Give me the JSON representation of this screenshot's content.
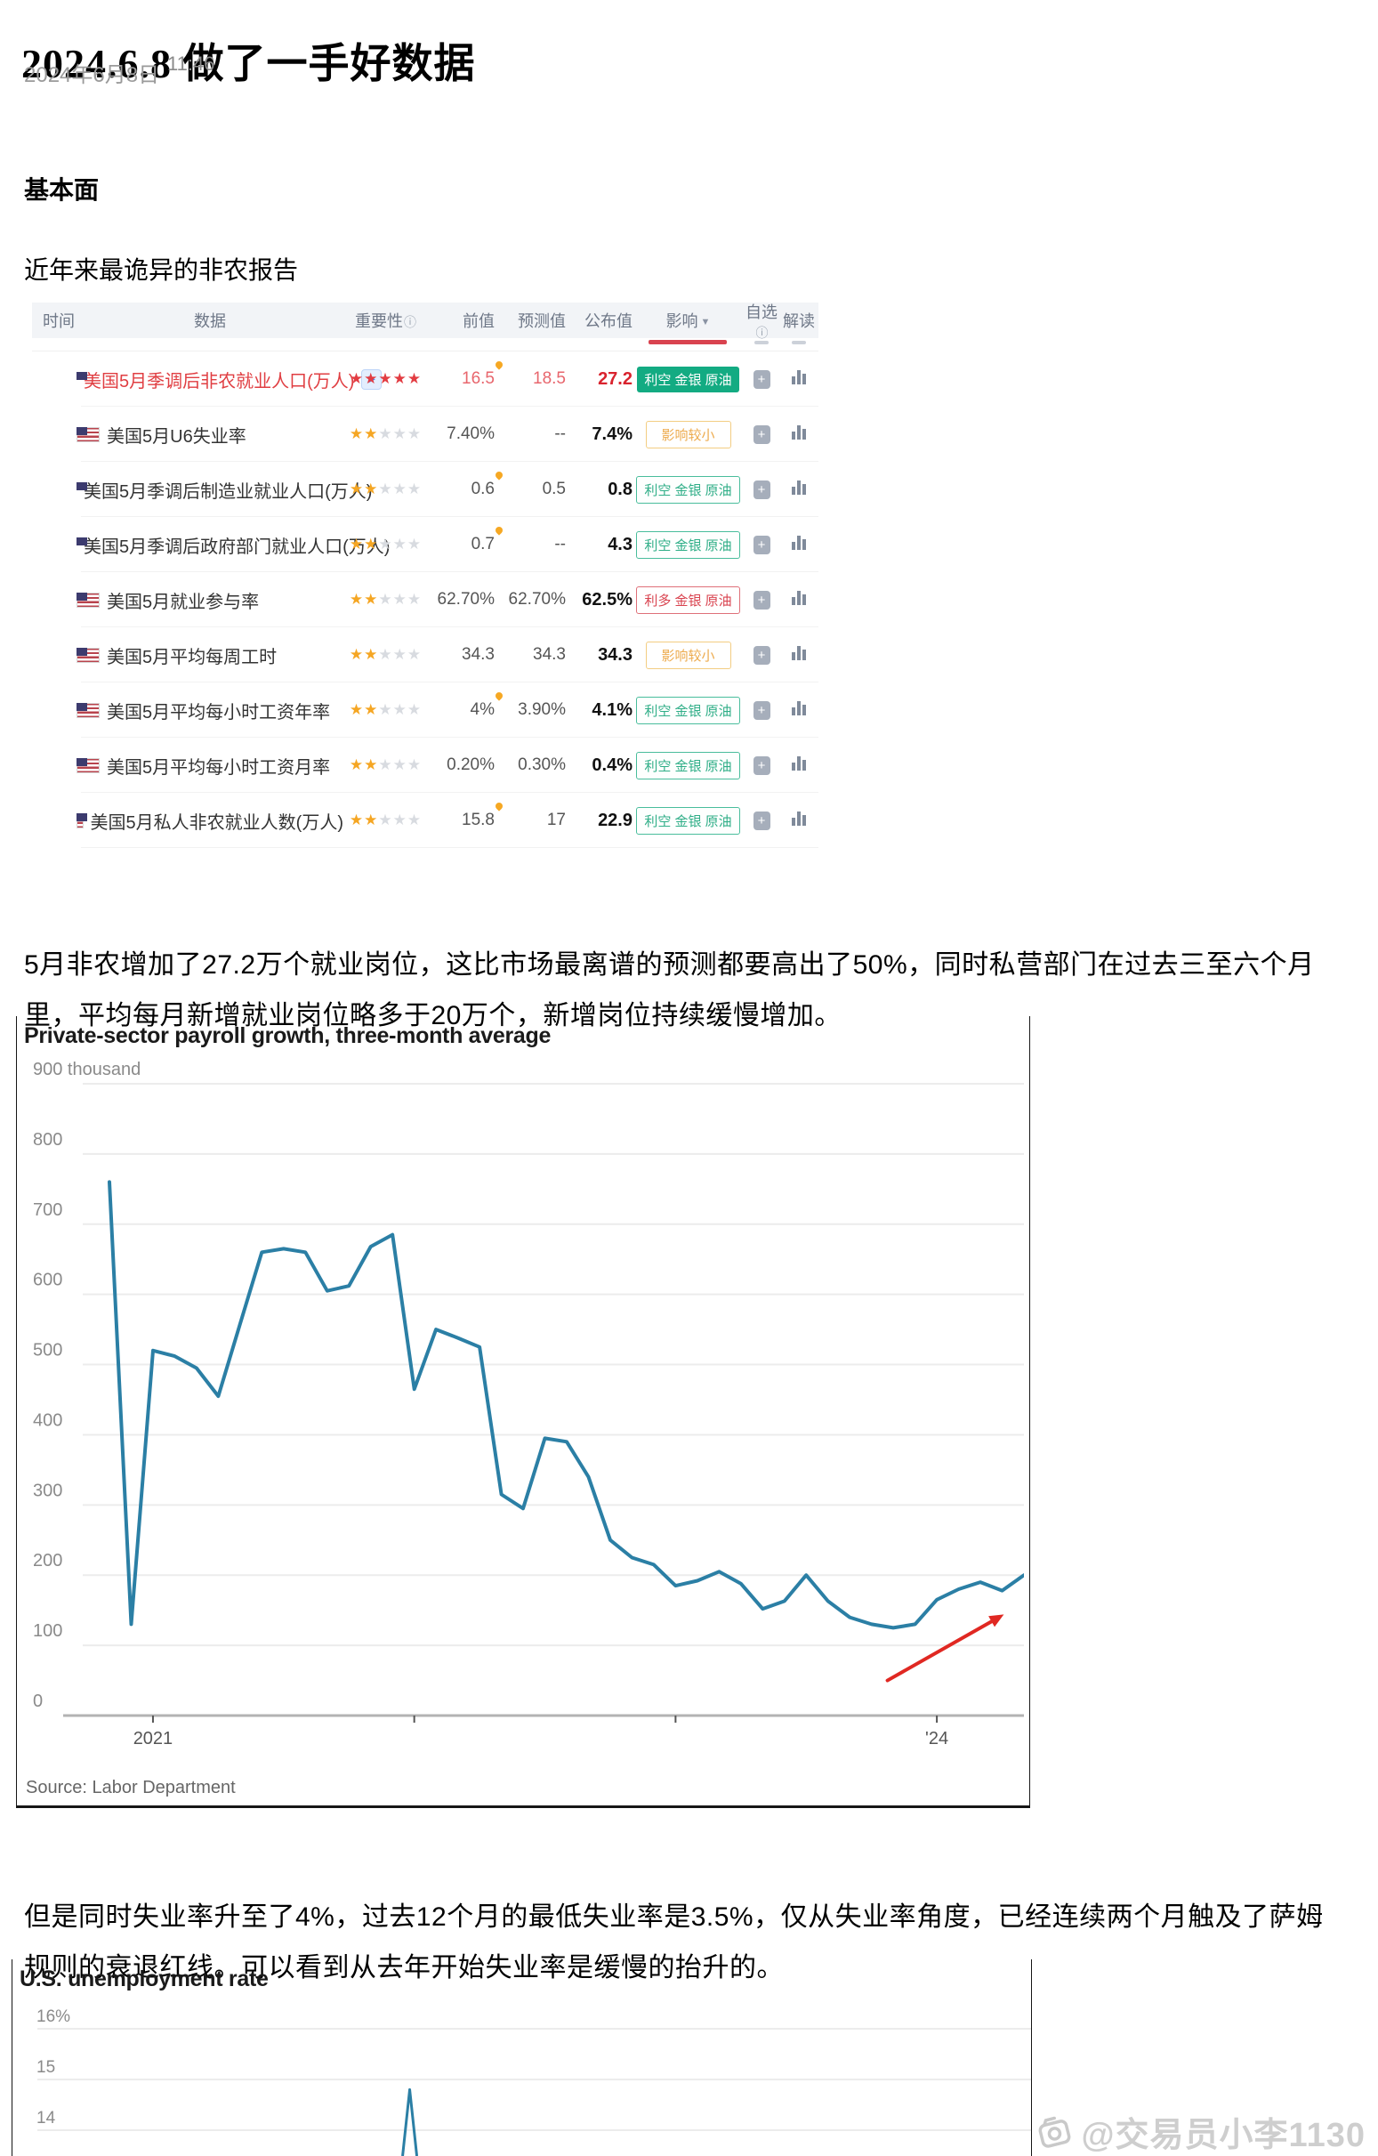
{
  "header": {
    "title": "2024.6.8  做了一手好数据",
    "date": "2024年6月8日",
    "time": "11:46"
  },
  "section": {
    "heading": "基本面",
    "intro": "近年来最诡异的非农报告"
  },
  "table": {
    "headers": {
      "time": "时间",
      "data": "数据",
      "importance": "重要性",
      "prev": "前值",
      "forecast": "预测值",
      "actual": "公布值",
      "impact": "影响",
      "watch": "自选",
      "explain": "解读"
    },
    "rows": [
      {
        "name": "美国5月季调后非农就业人口(万人)",
        "featured": true,
        "video_icon": true,
        "stars": 5,
        "prev": "16.5",
        "prev_flame": true,
        "forecast": "18.5",
        "actual": "27.2",
        "badge": {
          "text": "利空 金银 原油",
          "style": "green-solid"
        }
      },
      {
        "name": "美国5月U6失业率",
        "featured": false,
        "video_icon": false,
        "stars": 2,
        "prev": "7.40%",
        "prev_flame": false,
        "forecast": "--",
        "actual": "7.4%",
        "badge": {
          "text": "影响较小",
          "style": "orange-outline"
        }
      },
      {
        "name": "美国5月季调后制造业就业人口(万人)",
        "featured": false,
        "video_icon": false,
        "stars": 2,
        "prev": "0.6",
        "prev_flame": true,
        "forecast": "0.5",
        "actual": "0.8",
        "badge": {
          "text": "利空 金银 原油",
          "style": "green-outline"
        }
      },
      {
        "name": "美国5月季调后政府部门就业人口(万人)",
        "featured": false,
        "video_icon": false,
        "stars": 2,
        "prev": "0.7",
        "prev_flame": true,
        "forecast": "--",
        "actual": "4.3",
        "badge": {
          "text": "利空 金银 原油",
          "style": "green-outline"
        }
      },
      {
        "name": "美国5月就业参与率",
        "featured": false,
        "video_icon": false,
        "stars": 2,
        "prev": "62.70%",
        "prev_flame": false,
        "forecast": "62.70%",
        "actual": "62.5%",
        "badge": {
          "text": "利多 金银 原油",
          "style": "red-outline"
        }
      },
      {
        "name": "美国5月平均每周工时",
        "featured": false,
        "video_icon": false,
        "stars": 2,
        "prev": "34.3",
        "prev_flame": false,
        "forecast": "34.3",
        "actual": "34.3",
        "badge": {
          "text": "影响较小",
          "style": "orange-outline"
        }
      },
      {
        "name": "美国5月平均每小时工资年率",
        "featured": false,
        "video_icon": false,
        "stars": 2,
        "prev": "4%",
        "prev_flame": true,
        "forecast": "3.90%",
        "actual": "4.1%",
        "badge": {
          "text": "利空 金银 原油",
          "style": "green-outline"
        }
      },
      {
        "name": "美国5月平均每小时工资月率",
        "featured": false,
        "video_icon": false,
        "stars": 2,
        "prev": "0.20%",
        "prev_flame": false,
        "forecast": "0.30%",
        "actual": "0.4%",
        "badge": {
          "text": "利空 金银 原油",
          "style": "green-outline"
        }
      },
      {
        "name": "美国5月私人非农就业人数(万人)",
        "featured": false,
        "video_icon": false,
        "stars": 2,
        "prev": "15.8",
        "prev_flame": true,
        "forecast": "17",
        "actual": "22.9",
        "badge": {
          "text": "利空 金银 原油",
          "style": "green-outline"
        }
      }
    ]
  },
  "paragraphs": {
    "p1": "5月非农增加了27.2万个就业岗位，这比市场最离谱的预测都要高出了50%，同时私营部门在过去三至六个月里，平均每月新增就业岗位略多于20万个，新增岗位持续缓慢增加。",
    "p2": "但是同时失业率升至了4%，过去12个月的最低失业率是3.5%，仅从失业率角度，已经连续两个月触及了萨姆规则的衰退红线。可以看到从去年开始失业率是缓慢的抬升的。"
  },
  "chart_data": [
    {
      "type": "line",
      "title": "Private-sector payroll growth, three-month average",
      "ylabel": "thousands of jobs",
      "ylim": [
        0,
        900
      ],
      "ytick_step": 100,
      "ytick_top_label": "900 thousand",
      "x_months_start": "2020-11",
      "x_tick_month_indices": [
        2,
        14,
        26,
        38
      ],
      "x_tick_labels": [
        "2021",
        "",
        "",
        "'24"
      ],
      "values": [
        760,
        130,
        520,
        512,
        495,
        455,
        558,
        660,
        665,
        660,
        605,
        612,
        668,
        685,
        465,
        550,
        538,
        525,
        315,
        295,
        395,
        390,
        340,
        250,
        225,
        215,
        185,
        192,
        205,
        188,
        152,
        163,
        200,
        163,
        140,
        130,
        125,
        130,
        165,
        180,
        190,
        178,
        200
      ],
      "line_color": "#2b7fa5",
      "grid": true,
      "legend": "none",
      "annotation": {
        "type": "arrow",
        "color": "#e02822",
        "x1_frac": 0.864,
        "y1_value": 50,
        "x2_frac": 0.98,
        "y2_value": 144
      },
      "source": "Source: Labor Department"
    },
    {
      "type": "line",
      "title": "U.S. unemployment rate",
      "visible_partial": true,
      "visible_yticks": [
        {
          "value": 16,
          "label": "16%"
        },
        {
          "value": 15,
          "label": "15"
        },
        {
          "value": 14,
          "label": "14"
        }
      ],
      "spike": {
        "x_fraction": 0.39,
        "peak_value": 14.8
      },
      "line_color": "#2b7fa5",
      "grid": true
    }
  ],
  "watermark": {
    "handle": "@交易员小李1130"
  }
}
